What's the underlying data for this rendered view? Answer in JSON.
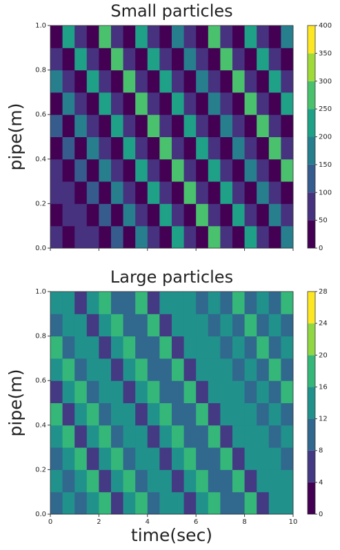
{
  "chart_data": [
    {
      "type": "heatmap",
      "title": "Small particles",
      "ylabel": "pipe(m)",
      "x": [
        0.25,
        0.75,
        1.25,
        1.75,
        2.25,
        2.75,
        3.25,
        3.75,
        4.25,
        4.75,
        5.25,
        5.75,
        6.25,
        6.75,
        7.25,
        7.75,
        8.25,
        8.75,
        9.25,
        9.75
      ],
      "y": [
        0.05,
        0.15,
        0.25,
        0.35,
        0.45,
        0.55,
        0.65,
        0.75,
        0.85,
        0.95
      ],
      "z": [
        [
          60,
          40,
          80,
          50,
          30,
          120,
          40,
          150,
          60,
          10,
          200,
          70,
          10,
          250,
          90,
          10,
          220,
          60,
          10,
          180
        ],
        [
          40,
          80,
          50,
          30,
          120,
          40,
          150,
          60,
          10,
          200,
          70,
          10,
          250,
          90,
          10,
          220,
          60,
          10,
          180,
          70
        ],
        [
          80,
          50,
          30,
          120,
          40,
          150,
          60,
          10,
          200,
          70,
          10,
          250,
          90,
          10,
          220,
          60,
          10,
          180,
          70,
          30
        ],
        [
          50,
          30,
          120,
          40,
          150,
          60,
          10,
          200,
          70,
          10,
          250,
          90,
          10,
          220,
          60,
          10,
          180,
          70,
          30,
          260
        ],
        [
          30,
          120,
          40,
          150,
          60,
          10,
          200,
          70,
          10,
          250,
          90,
          10,
          220,
          60,
          10,
          180,
          70,
          30,
          260,
          50
        ],
        [
          120,
          40,
          150,
          60,
          10,
          200,
          70,
          10,
          250,
          90,
          10,
          220,
          60,
          10,
          180,
          70,
          30,
          260,
          50,
          10
        ],
        [
          40,
          150,
          60,
          10,
          200,
          70,
          10,
          250,
          90,
          10,
          220,
          60,
          10,
          180,
          70,
          30,
          260,
          50,
          10,
          240
        ],
        [
          150,
          60,
          10,
          200,
          70,
          10,
          250,
          90,
          10,
          220,
          60,
          10,
          180,
          70,
          30,
          260,
          50,
          10,
          240,
          80
        ],
        [
          60,
          10,
          200,
          70,
          10,
          250,
          90,
          10,
          220,
          60,
          10,
          180,
          70,
          30,
          260,
          50,
          10,
          240,
          80,
          20
        ],
        [
          10,
          200,
          70,
          10,
          250,
          90,
          10,
          220,
          60,
          10,
          180,
          70,
          30,
          260,
          50,
          10,
          240,
          80,
          20,
          190
        ]
      ],
      "xlim": [
        0,
        10
      ],
      "xticks": [
        0,
        2,
        4,
        6,
        8,
        10
      ],
      "show_xtick_labels": false,
      "ylim": [
        0,
        1
      ],
      "yticks": [
        {
          "value": 0,
          "label": "0.0"
        },
        {
          "value": 0.2,
          "label": "0.2"
        },
        {
          "value": 0.4,
          "label": "0.4"
        },
        {
          "value": 0.6,
          "label": "0.6"
        },
        {
          "value": 0.8,
          "label": "0.8"
        },
        {
          "value": 1,
          "label": "1.0"
        }
      ],
      "zlim": [
        0,
        400
      ],
      "zticks": [
        0,
        50,
        100,
        150,
        200,
        250,
        300,
        350,
        400
      ],
      "colors": [
        "#440154",
        "#46327e",
        "#365c8d",
        "#277f8e",
        "#1fa187",
        "#4ac16d",
        "#a0da39",
        "#fde725"
      ]
    },
    {
      "type": "heatmap",
      "title": "Large particles",
      "ylabel": "pipe(m)",
      "xlabel": "time(sec)",
      "x": [
        0.25,
        0.75,
        1.25,
        1.75,
        2.25,
        2.75,
        3.25,
        3.75,
        4.25,
        4.75,
        5.25,
        5.75,
        6.25,
        6.75,
        7.25,
        7.75,
        8.25,
        8.75,
        9.25,
        9.75
      ],
      "y": [
        0.05,
        0.15,
        0.25,
        0.35,
        0.45,
        0.55,
        0.65,
        0.75,
        0.85,
        0.95
      ],
      "z": [
        [
          10,
          14,
          8,
          12,
          16,
          6,
          13,
          18,
          9,
          12,
          15,
          5,
          14,
          17,
          8,
          11,
          16,
          7,
          13,
          12
        ],
        [
          14,
          8,
          12,
          16,
          6,
          13,
          18,
          9,
          12,
          15,
          5,
          14,
          17,
          8,
          11,
          16,
          7,
          13,
          12,
          15
        ],
        [
          8,
          12,
          16,
          6,
          13,
          18,
          9,
          12,
          15,
          5,
          14,
          17,
          8,
          11,
          16,
          7,
          13,
          12,
          15,
          9
        ],
        [
          12,
          16,
          6,
          13,
          18,
          9,
          12,
          15,
          5,
          14,
          17,
          8,
          11,
          16,
          7,
          13,
          12,
          15,
          9,
          14
        ],
        [
          16,
          6,
          13,
          18,
          9,
          12,
          15,
          5,
          14,
          17,
          8,
          11,
          16,
          7,
          13,
          12,
          15,
          9,
          14,
          11
        ],
        [
          6,
          13,
          18,
          9,
          12,
          15,
          5,
          14,
          17,
          8,
          11,
          16,
          7,
          13,
          12,
          15,
          9,
          14,
          11,
          17
        ],
        [
          13,
          18,
          9,
          12,
          15,
          5,
          14,
          17,
          8,
          11,
          16,
          7,
          13,
          12,
          15,
          9,
          14,
          11,
          17,
          8
        ],
        [
          18,
          9,
          12,
          15,
          5,
          14,
          17,
          8,
          11,
          16,
          7,
          13,
          12,
          15,
          9,
          14,
          11,
          17,
          8,
          12
        ],
        [
          9,
          12,
          15,
          5,
          14,
          17,
          8,
          11,
          16,
          7,
          13,
          12,
          15,
          9,
          14,
          11,
          17,
          8,
          12,
          10
        ],
        [
          12,
          15,
          5,
          14,
          17,
          8,
          11,
          16,
          7,
          13,
          12,
          15,
          9,
          14,
          11,
          17,
          8,
          12,
          10,
          16
        ]
      ],
      "xlim": [
        0,
        10
      ],
      "xticks": [
        0,
        2,
        4,
        6,
        8,
        10
      ],
      "show_xtick_labels": true,
      "ylim": [
        0,
        1
      ],
      "yticks": [
        {
          "value": 0,
          "label": "0.0"
        },
        {
          "value": 0.2,
          "label": "0.2"
        },
        {
          "value": 0.4,
          "label": "0.4"
        },
        {
          "value": 0.6,
          "label": "0.6"
        },
        {
          "value": 0.8,
          "label": "0.8"
        },
        {
          "value": 1,
          "label": "1.0"
        }
      ],
      "zlim": [
        0,
        28
      ],
      "zticks": [
        0,
        4,
        8,
        12,
        16,
        20,
        24,
        28
      ],
      "colors": [
        "#440154",
        "#443983",
        "#31688e",
        "#21918c",
        "#35b779",
        "#90d743",
        "#fde725"
      ]
    }
  ]
}
